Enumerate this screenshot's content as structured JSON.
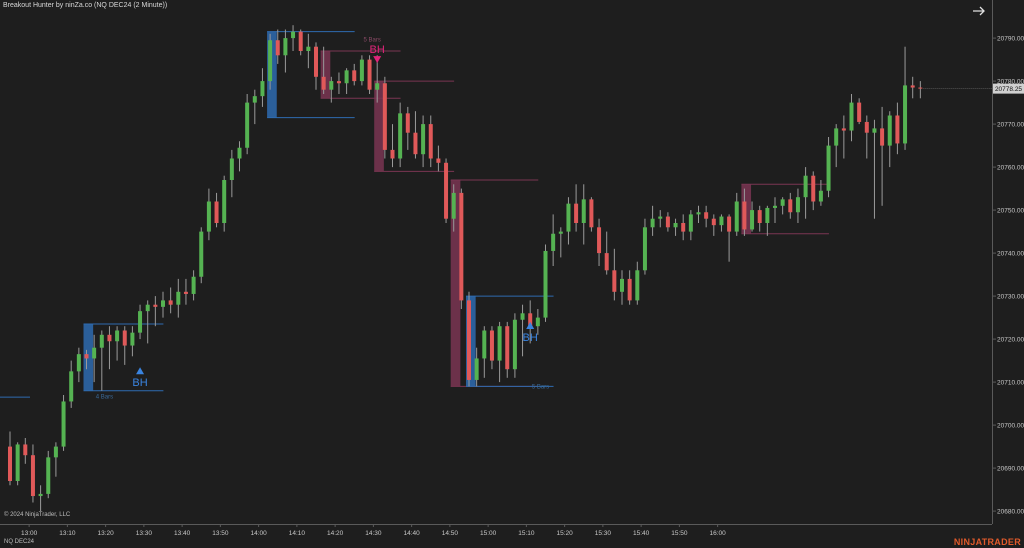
{
  "title": "Breakout Hunter by ninZa.co (NQ DEC24 (2 Minute))",
  "copyright": "© 2024 NinjaTrader, LLC",
  "instrument": "NQ DEC24",
  "brand": "NINJATRADER",
  "nav_icon": "arrow-right-icon",
  "colors": {
    "background": "#1e1e1e",
    "up": "#55b352",
    "down": "#e05959",
    "wick": "#9a9a9a",
    "bull_zone": "#2e6bb0",
    "bear_zone": "#7a3552",
    "bull_label": "#3a84e0",
    "bear_label": "#e0247a",
    "price_tag": "#d0d0d0",
    "axis_text": "#c8c8c8"
  },
  "chart_data": {
    "type": "candlestick",
    "x_tick_labels": [
      "13:00",
      "13:10",
      "13:20",
      "13:30",
      "13:40",
      "13:50",
      "14:00",
      "14:10",
      "14:20",
      "14:30",
      "14:40",
      "14:50",
      "15:00",
      "15:10",
      "15:20",
      "15:30",
      "15:40",
      "15:50",
      "16:00"
    ],
    "y_tick_labels": [
      "20680.00",
      "20690.00",
      "20700.00",
      "20710.00",
      "20720.00",
      "20730.00",
      "20740.00",
      "20750.00",
      "20760.00",
      "20770.00",
      "20780.00",
      "20790.00"
    ],
    "ylim": [
      20677,
      20797
    ],
    "last_price": "20778.25",
    "series": [
      {
        "o": 20695.0,
        "h": 20698.5,
        "l": 20686.0,
        "c": 20687.0
      },
      {
        "o": 20687.0,
        "h": 20696.0,
        "l": 20686.0,
        "c": 20695.5
      },
      {
        "o": 20695.5,
        "h": 20697.0,
        "l": 20691.0,
        "c": 20693.0
      },
      {
        "o": 20693.0,
        "h": 20695.5,
        "l": 20682.0,
        "c": 20683.5
      },
      {
        "o": 20683.5,
        "h": 20686.0,
        "l": 20680.0,
        "c": 20684.0
      },
      {
        "o": 20684.0,
        "h": 20694.0,
        "l": 20683.0,
        "c": 20692.5
      },
      {
        "o": 20692.5,
        "h": 20696.0,
        "l": 20688.0,
        "c": 20695.0
      },
      {
        "o": 20695.0,
        "h": 20707.0,
        "l": 20694.0,
        "c": 20705.5
      },
      {
        "o": 20705.5,
        "h": 20715.0,
        "l": 20704.0,
        "c": 20712.5
      },
      {
        "o": 20712.5,
        "h": 20718.0,
        "l": 20710.0,
        "c": 20716.5
      },
      {
        "o": 20716.5,
        "h": 20717.5,
        "l": 20713.0,
        "c": 20715.5
      },
      {
        "o": 20715.5,
        "h": 20721.0,
        "l": 20710.0,
        "c": 20718.0
      },
      {
        "o": 20718.0,
        "h": 20722.0,
        "l": 20708.0,
        "c": 20721.0
      },
      {
        "o": 20721.0,
        "h": 20723.0,
        "l": 20713.0,
        "c": 20719.5
      },
      {
        "o": 20719.5,
        "h": 20723.0,
        "l": 20715.0,
        "c": 20722.0
      },
      {
        "o": 20722.0,
        "h": 20723.0,
        "l": 20714.0,
        "c": 20718.5
      },
      {
        "o": 20718.5,
        "h": 20723.0,
        "l": 20716.0,
        "c": 20721.5
      },
      {
        "o": 20721.5,
        "h": 20728.0,
        "l": 20720.0,
        "c": 20726.5
      },
      {
        "o": 20726.5,
        "h": 20729.0,
        "l": 20719.0,
        "c": 20728.0
      },
      {
        "o": 20728.0,
        "h": 20730.0,
        "l": 20723.0,
        "c": 20727.5
      },
      {
        "o": 20727.5,
        "h": 20731.0,
        "l": 20725.0,
        "c": 20729.0
      },
      {
        "o": 20729.0,
        "h": 20732.0,
        "l": 20726.0,
        "c": 20728.0
      },
      {
        "o": 20728.0,
        "h": 20734.0,
        "l": 20725.0,
        "c": 20731.0
      },
      {
        "o": 20731.0,
        "h": 20734.0,
        "l": 20728.0,
        "c": 20730.5
      },
      {
        "o": 20730.5,
        "h": 20736.0,
        "l": 20729.0,
        "c": 20734.5
      },
      {
        "o": 20734.5,
        "h": 20746.0,
        "l": 20733.0,
        "c": 20745.0
      },
      {
        "o": 20745.0,
        "h": 20755.0,
        "l": 20743.0,
        "c": 20752.0
      },
      {
        "o": 20752.0,
        "h": 20754.0,
        "l": 20746.0,
        "c": 20747.0
      },
      {
        "o": 20747.0,
        "h": 20758.0,
        "l": 20745.0,
        "c": 20757.0
      },
      {
        "o": 20757.0,
        "h": 20764.0,
        "l": 20753.0,
        "c": 20762.0
      },
      {
        "o": 20762.0,
        "h": 20766.0,
        "l": 20759.0,
        "c": 20764.5
      },
      {
        "o": 20764.5,
        "h": 20777.0,
        "l": 20763.0,
        "c": 20775.0
      },
      {
        "o": 20775.0,
        "h": 20778.0,
        "l": 20770.0,
        "c": 20776.5
      },
      {
        "o": 20776.5,
        "h": 20783.0,
        "l": 20774.0,
        "c": 20780.0
      },
      {
        "o": 20780.0,
        "h": 20791.0,
        "l": 20778.0,
        "c": 20789.5
      },
      {
        "o": 20789.5,
        "h": 20792.0,
        "l": 20784.0,
        "c": 20786.0
      },
      {
        "o": 20786.0,
        "h": 20792.0,
        "l": 20782.0,
        "c": 20790.0
      },
      {
        "o": 20790.0,
        "h": 20793.0,
        "l": 20787.0,
        "c": 20791.5
      },
      {
        "o": 20791.5,
        "h": 20792.0,
        "l": 20786.0,
        "c": 20787.0
      },
      {
        "o": 20787.0,
        "h": 20791.0,
        "l": 20783.0,
        "c": 20788.0
      },
      {
        "o": 20788.0,
        "h": 20789.0,
        "l": 20778.0,
        "c": 20781.0
      },
      {
        "o": 20781.0,
        "h": 20788.0,
        "l": 20777.0,
        "c": 20778.0
      },
      {
        "o": 20778.0,
        "h": 20781.0,
        "l": 20775.0,
        "c": 20780.0
      },
      {
        "o": 20780.0,
        "h": 20782.0,
        "l": 20777.0,
        "c": 20779.5
      },
      {
        "o": 20779.5,
        "h": 20783.0,
        "l": 20777.0,
        "c": 20782.5
      },
      {
        "o": 20782.5,
        "h": 20784.0,
        "l": 20779.0,
        "c": 20780.0
      },
      {
        "o": 20780.0,
        "h": 20786.0,
        "l": 20779.0,
        "c": 20785.0
      },
      {
        "o": 20785.0,
        "h": 20786.0,
        "l": 20777.0,
        "c": 20778.0
      },
      {
        "o": 20778.0,
        "h": 20786.0,
        "l": 20775.0,
        "c": 20779.5
      },
      {
        "o": 20779.5,
        "h": 20781.0,
        "l": 20762.0,
        "c": 20764.0
      },
      {
        "o": 20764.0,
        "h": 20770.0,
        "l": 20760.0,
        "c": 20762.0
      },
      {
        "o": 20762.0,
        "h": 20775.0,
        "l": 20760.0,
        "c": 20772.5
      },
      {
        "o": 20772.5,
        "h": 20774.0,
        "l": 20764.0,
        "c": 20768.0
      },
      {
        "o": 20768.0,
        "h": 20773.0,
        "l": 20762.0,
        "c": 20763.0
      },
      {
        "o": 20763.0,
        "h": 20772.0,
        "l": 20760.0,
        "c": 20770.0
      },
      {
        "o": 20770.0,
        "h": 20772.0,
        "l": 20760.0,
        "c": 20762.0
      },
      {
        "o": 20762.0,
        "h": 20765.0,
        "l": 20759.0,
        "c": 20761.0
      },
      {
        "o": 20761.0,
        "h": 20762.0,
        "l": 20747.0,
        "c": 20748.0
      },
      {
        "o": 20748.0,
        "h": 20756.0,
        "l": 20745.0,
        "c": 20754.0
      },
      {
        "o": 20754.0,
        "h": 20755.0,
        "l": 20727.0,
        "c": 20729.0
      },
      {
        "o": 20729.0,
        "h": 20731.0,
        "l": 20709.0,
        "c": 20710.5
      },
      {
        "o": 20710.5,
        "h": 20718.0,
        "l": 20709.0,
        "c": 20715.5
      },
      {
        "o": 20715.5,
        "h": 20723.0,
        "l": 20711.0,
        "c": 20722.0
      },
      {
        "o": 20722.0,
        "h": 20723.0,
        "l": 20713.0,
        "c": 20715.0
      },
      {
        "o": 20715.0,
        "h": 20724.0,
        "l": 20710.0,
        "c": 20723.0
      },
      {
        "o": 20723.0,
        "h": 20724.0,
        "l": 20711.0,
        "c": 20713.0
      },
      {
        "o": 20713.0,
        "h": 20726.0,
        "l": 20711.0,
        "c": 20724.5
      },
      {
        "o": 20724.5,
        "h": 20728.0,
        "l": 20716.0,
        "c": 20726.0
      },
      {
        "o": 20726.0,
        "h": 20729.0,
        "l": 20719.0,
        "c": 20723.0
      },
      {
        "o": 20723.0,
        "h": 20727.0,
        "l": 20721.0,
        "c": 20725.0
      },
      {
        "o": 20725.0,
        "h": 20742.0,
        "l": 20724.0,
        "c": 20740.5
      },
      {
        "o": 20740.5,
        "h": 20749.0,
        "l": 20737.0,
        "c": 20744.5
      },
      {
        "o": 20744.5,
        "h": 20746.0,
        "l": 20739.0,
        "c": 20745.0
      },
      {
        "o": 20745.0,
        "h": 20753.0,
        "l": 20742.0,
        "c": 20751.5
      },
      {
        "o": 20751.5,
        "h": 20756.0,
        "l": 20745.0,
        "c": 20747.0
      },
      {
        "o": 20747.0,
        "h": 20756.0,
        "l": 20742.0,
        "c": 20752.5
      },
      {
        "o": 20752.5,
        "h": 20753.0,
        "l": 20745.0,
        "c": 20746.0
      },
      {
        "o": 20746.0,
        "h": 20748.0,
        "l": 20737.0,
        "c": 20740.0
      },
      {
        "o": 20740.0,
        "h": 20745.0,
        "l": 20735.0,
        "c": 20736.0
      },
      {
        "o": 20736.0,
        "h": 20741.0,
        "l": 20729.0,
        "c": 20731.0
      },
      {
        "o": 20731.0,
        "h": 20736.0,
        "l": 20728.0,
        "c": 20734.0
      },
      {
        "o": 20734.0,
        "h": 20736.0,
        "l": 20728.0,
        "c": 20729.0
      },
      {
        "o": 20729.0,
        "h": 20738.0,
        "l": 20728.0,
        "c": 20736.0
      },
      {
        "o": 20736.0,
        "h": 20748.0,
        "l": 20735.0,
        "c": 20746.0
      },
      {
        "o": 20746.0,
        "h": 20751.0,
        "l": 20744.0,
        "c": 20748.0
      },
      {
        "o": 20748.0,
        "h": 20750.0,
        "l": 20746.0,
        "c": 20748.5
      },
      {
        "o": 20748.5,
        "h": 20749.5,
        "l": 20745.0,
        "c": 20746.0
      },
      {
        "o": 20746.0,
        "h": 20748.0,
        "l": 20744.0,
        "c": 20747.0
      },
      {
        "o": 20747.0,
        "h": 20749.0,
        "l": 20743.0,
        "c": 20745.0
      },
      {
        "o": 20745.0,
        "h": 20750.0,
        "l": 20743.0,
        "c": 20749.0
      },
      {
        "o": 20749.0,
        "h": 20751.0,
        "l": 20747.0,
        "c": 20749.5
      },
      {
        "o": 20749.5,
        "h": 20751.0,
        "l": 20746.0,
        "c": 20748.0
      },
      {
        "o": 20748.0,
        "h": 20749.0,
        "l": 20744.0,
        "c": 20746.5
      },
      {
        "o": 20746.5,
        "h": 20749.0,
        "l": 20745.0,
        "c": 20748.5
      },
      {
        "o": 20748.5,
        "h": 20749.0,
        "l": 20738.0,
        "c": 20745.0
      },
      {
        "o": 20745.0,
        "h": 20754.0,
        "l": 20744.0,
        "c": 20752.0
      },
      {
        "o": 20752.0,
        "h": 20755.0,
        "l": 20744.0,
        "c": 20745.5
      },
      {
        "o": 20745.5,
        "h": 20752.0,
        "l": 20745.0,
        "c": 20750.0
      },
      {
        "o": 20750.0,
        "h": 20751.0,
        "l": 20745.0,
        "c": 20747.0
      },
      {
        "o": 20747.0,
        "h": 20751.0,
        "l": 20744.0,
        "c": 20750.5
      },
      {
        "o": 20750.5,
        "h": 20753.0,
        "l": 20747.0,
        "c": 20751.0
      },
      {
        "o": 20751.0,
        "h": 20753.0,
        "l": 20749.0,
        "c": 20752.5
      },
      {
        "o": 20752.5,
        "h": 20754.0,
        "l": 20748.0,
        "c": 20749.5
      },
      {
        "o": 20749.5,
        "h": 20755.0,
        "l": 20747.0,
        "c": 20753.0
      },
      {
        "o": 20753.0,
        "h": 20760.0,
        "l": 20748.0,
        "c": 20758.0
      },
      {
        "o": 20758.0,
        "h": 20759.0,
        "l": 20750.0,
        "c": 20752.0
      },
      {
        "o": 20752.0,
        "h": 20757.0,
        "l": 20751.0,
        "c": 20754.5
      },
      {
        "o": 20754.5,
        "h": 20767.0,
        "l": 20753.0,
        "c": 20765.0
      },
      {
        "o": 20765.0,
        "h": 20770.0,
        "l": 20760.0,
        "c": 20769.0
      },
      {
        "o": 20769.0,
        "h": 20772.0,
        "l": 20762.0,
        "c": 20768.5
      },
      {
        "o": 20768.5,
        "h": 20777.0,
        "l": 20766.0,
        "c": 20775.0
      },
      {
        "o": 20775.0,
        "h": 20776.0,
        "l": 20770.0,
        "c": 20770.5
      },
      {
        "o": 20770.5,
        "h": 20772.0,
        "l": 20762.0,
        "c": 20768.0
      },
      {
        "o": 20768.0,
        "h": 20771.0,
        "l": 20748.0,
        "c": 20769.0
      },
      {
        "o": 20769.0,
        "h": 20774.0,
        "l": 20751.0,
        "c": 20765.0
      },
      {
        "o": 20765.0,
        "h": 20773.0,
        "l": 20760.0,
        "c": 20772.0
      },
      {
        "o": 20772.0,
        "h": 20775.0,
        "l": 20763.0,
        "c": 20765.5
      },
      {
        "o": 20765.5,
        "h": 20788.0,
        "l": 20764.0,
        "c": 20779.0
      },
      {
        "o": 20779.0,
        "h": 20781.0,
        "l": 20776.0,
        "c": 20778.5
      },
      {
        "o": 20778.5,
        "h": 20780.0,
        "l": 20776.0,
        "c": 20778.25
      }
    ],
    "breakout_zones": [
      {
        "type": "bull",
        "start": 10,
        "end": 16,
        "top": 20723.5,
        "bottom": 20708.0,
        "label": ""
      },
      {
        "type": "bull",
        "start": 34,
        "end": 41,
        "top": 20791.5,
        "bottom": 20771.5,
        "label": ""
      },
      {
        "type": "bear",
        "start": 41,
        "end": 47,
        "top": 20787.0,
        "bottom": 20776.0,
        "label": "5 Bars"
      },
      {
        "type": "bear",
        "start": 48,
        "end": 54,
        "top": 20780.0,
        "bottom": 20759.0,
        "label": ""
      },
      {
        "type": "bear",
        "start": 58,
        "end": 65,
        "top": 20757.0,
        "bottom": 20709.0,
        "label": ""
      },
      {
        "type": "bull",
        "start": 60,
        "end": 67,
        "top": 20730.0,
        "bottom": 20709.0,
        "label": ""
      },
      {
        "type": "bear",
        "start": 96,
        "end": 103,
        "top": 20756.0,
        "bottom": 20744.5,
        "label": ""
      }
    ],
    "bar_count_labels": [
      "4 Bars",
      "5 Bars",
      "5 Bars"
    ],
    "signals": [
      {
        "type": "buy",
        "bar": 17,
        "price": 20713.0,
        "label": "BH"
      },
      {
        "type": "sell",
        "bar": 48,
        "price": 20786.5,
        "label": "BH"
      },
      {
        "type": "buy",
        "bar": 68,
        "price": 20723.5,
        "label": "BH"
      }
    ]
  }
}
